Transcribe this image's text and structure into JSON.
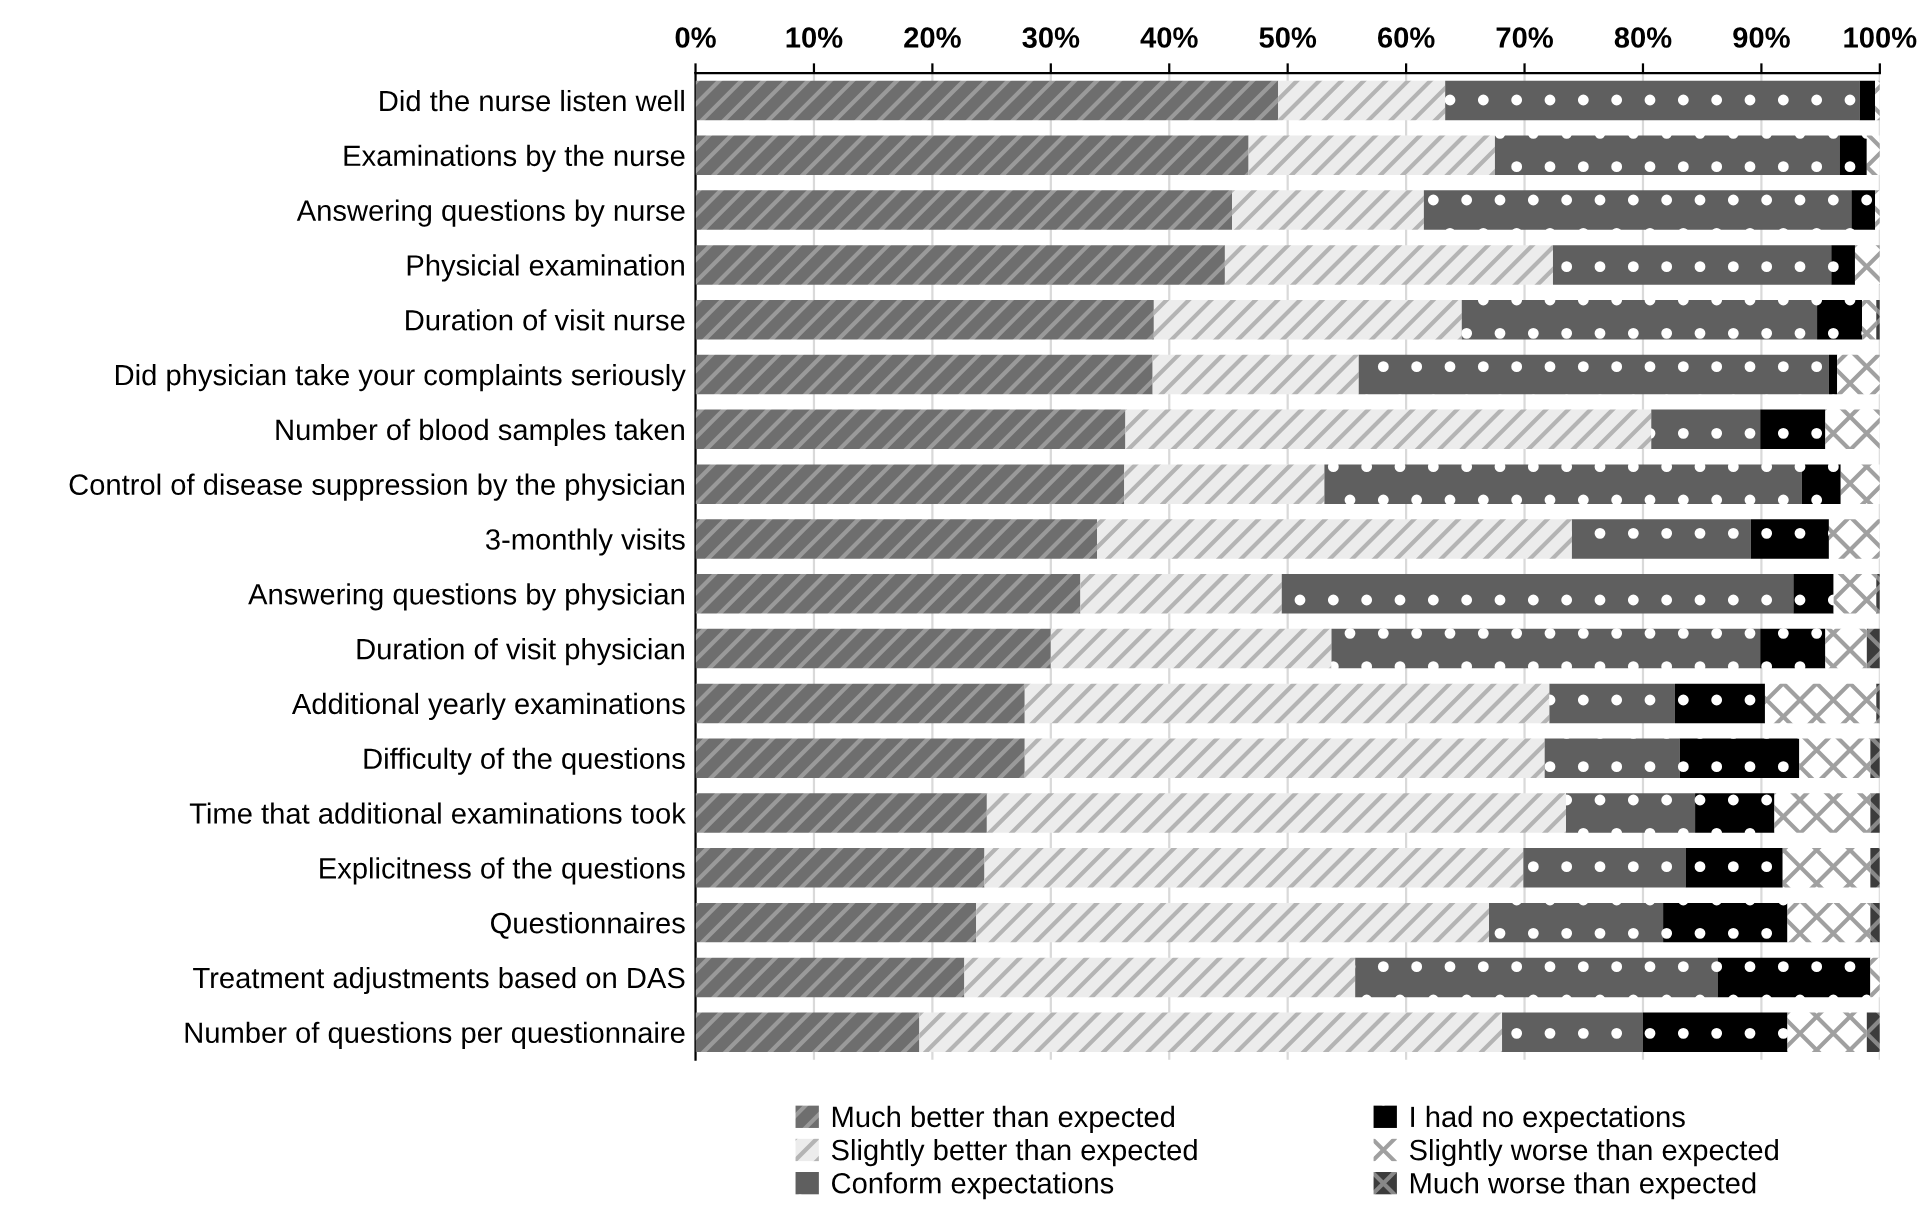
{
  "chart_data": {
    "type": "bar",
    "orientation": "horizontal",
    "stacked": true,
    "categories": [
      "Did the nurse listen well",
      "Examinations by the nurse",
      "Answering questions by nurse",
      "Physicial examination",
      "Duration of visit nurse",
      "Did physician take your complaints seriously",
      "Number of blood samples taken",
      "Control of disease suppression by the physician",
      "3-monthly visits",
      "Answering questions by physician",
      "Duration of visit physician",
      "Additional yearly examinations",
      "Difficulty of the questions",
      "Time that additional examinations took",
      "Explicitness of the questions",
      "Questionnaires",
      "Treatment adjustments based on DAS",
      "Number of questions per questionnaire"
    ],
    "series": [
      {
        "name": "Much better than expected",
        "color": "#6e6e6e",
        "values": [
          49.2,
          46.7,
          45.3,
          44.7,
          38.7,
          38.6,
          36.3,
          36.2,
          33.9,
          32.5,
          30.0,
          27.8,
          27.8,
          24.6,
          24.4,
          23.7,
          22.7,
          18.9
        ]
      },
      {
        "name": "Slightly better than expected",
        "color": "#ececec",
        "values": [
          14.1,
          20.8,
          16.2,
          27.7,
          26.0,
          17.4,
          44.4,
          16.9,
          40.1,
          17.0,
          23.7,
          44.3,
          43.9,
          48.9,
          45.5,
          43.3,
          33.0,
          49.2
        ]
      },
      {
        "name": "Conform expectations",
        "color": "#5f5f5f",
        "values": [
          35.0,
          29.1,
          36.1,
          23.5,
          30.0,
          39.7,
          9.2,
          40.3,
          15.1,
          43.2,
          36.2,
          10.6,
          11.4,
          10.9,
          13.7,
          14.7,
          30.6,
          11.9
        ]
      },
      {
        "name": "I had no expectations",
        "color": "#000000",
        "values": [
          1.3,
          2.3,
          2.0,
          2.0,
          3.8,
          0.7,
          5.5,
          3.3,
          6.6,
          3.4,
          5.5,
          7.6,
          10.1,
          6.7,
          8.2,
          10.5,
          12.9,
          12.2
        ]
      },
      {
        "name": "Slightly worse than expected",
        "color": "#ffffff",
        "values": [
          0.4,
          1.1,
          0.4,
          2.1,
          1.2,
          3.6,
          4.6,
          3.3,
          4.3,
          3.6,
          3.5,
          9.4,
          6.0,
          8.1,
          7.4,
          7.0,
          0.8,
          6.7
        ]
      },
      {
        "name": "Much worse than expected",
        "color": "#3c3c3c",
        "values": [
          0,
          0,
          0,
          0,
          0.3,
          0,
          0,
          0,
          0,
          0.3,
          1.1,
          0.3,
          0.8,
          0.8,
          0.8,
          0.8,
          0,
          1.1
        ]
      }
    ],
    "xlim": [
      0,
      100
    ],
    "xticks": [
      {
        "value": 0,
        "label": "0%"
      },
      {
        "value": 10,
        "label": "10%"
      },
      {
        "value": 20,
        "label": "20%"
      },
      {
        "value": 30,
        "label": "30%"
      },
      {
        "value": 40,
        "label": "40%"
      },
      {
        "value": 50,
        "label": "50%"
      },
      {
        "value": 60,
        "label": "60%"
      },
      {
        "value": 70,
        "label": "70%"
      },
      {
        "value": 80,
        "label": "80%"
      },
      {
        "value": 90,
        "label": "90%"
      },
      {
        "value": 100,
        "label": "100%"
      }
    ],
    "grid": "x",
    "legend": "bottom"
  }
}
